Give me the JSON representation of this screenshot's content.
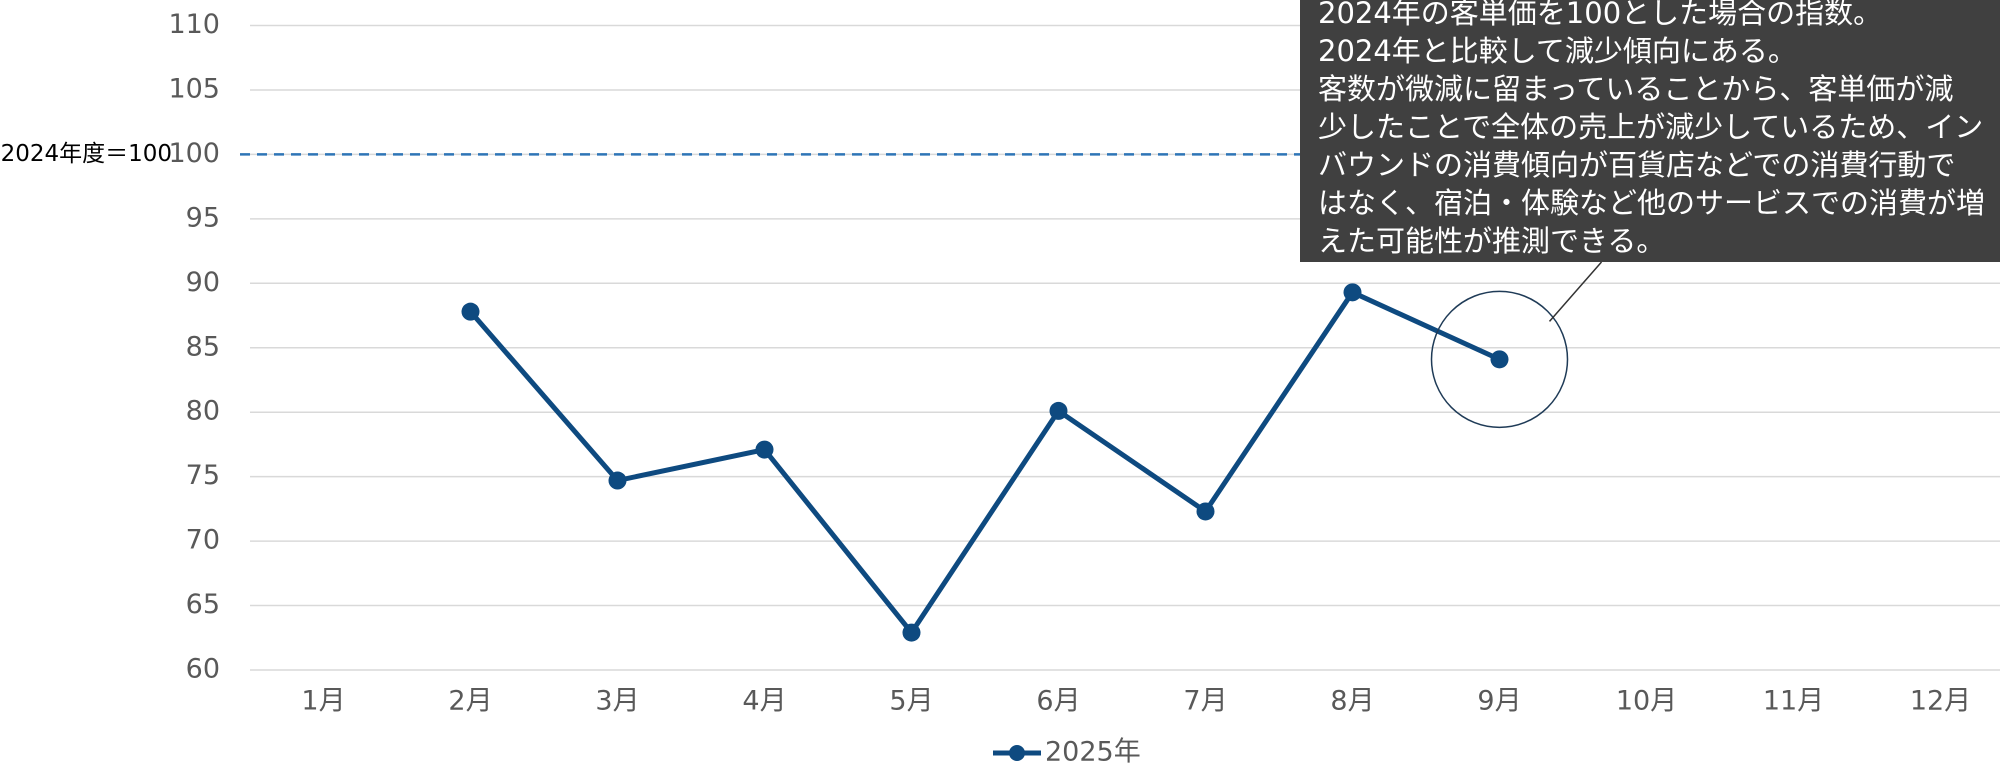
{
  "chart_data": {
    "type": "line",
    "categories": [
      "1月",
      "2月",
      "3月",
      "4月",
      "5月",
      "6月",
      "7月",
      "8月",
      "9月",
      "10月",
      "11月",
      "12月"
    ],
    "series": [
      {
        "name": "2025年",
        "color": "#0e4a80",
        "values": [
          null,
          87.8,
          74.7,
          77.1,
          62.9,
          80.1,
          72.3,
          89.3,
          84.1,
          null,
          null,
          null
        ]
      }
    ],
    "ylim": [
      60,
      110
    ],
    "yticks": [
      60,
      65,
      70,
      75,
      80,
      85,
      90,
      95,
      100,
      105,
      110
    ],
    "grid": true,
    "reference_line": {
      "value": 100,
      "label": "2024年度＝100",
      "color": "#2e75b6"
    },
    "annotation": {
      "lines": [
        "2024年の客単価を100とした場合の指数。",
        "2024年と比較して減少傾向にある。",
        "客数が微減に留まっていることから、客単価が減",
        "少したことで全体の売上が減少しているため、イン",
        "バウンドの消費傾向が百貨店などでの消費行動で",
        "はなく、宿泊・体験など他のサービスでの消費が増",
        "えた可能性が推測できる。"
      ]
    },
    "legend": "bottom"
  }
}
